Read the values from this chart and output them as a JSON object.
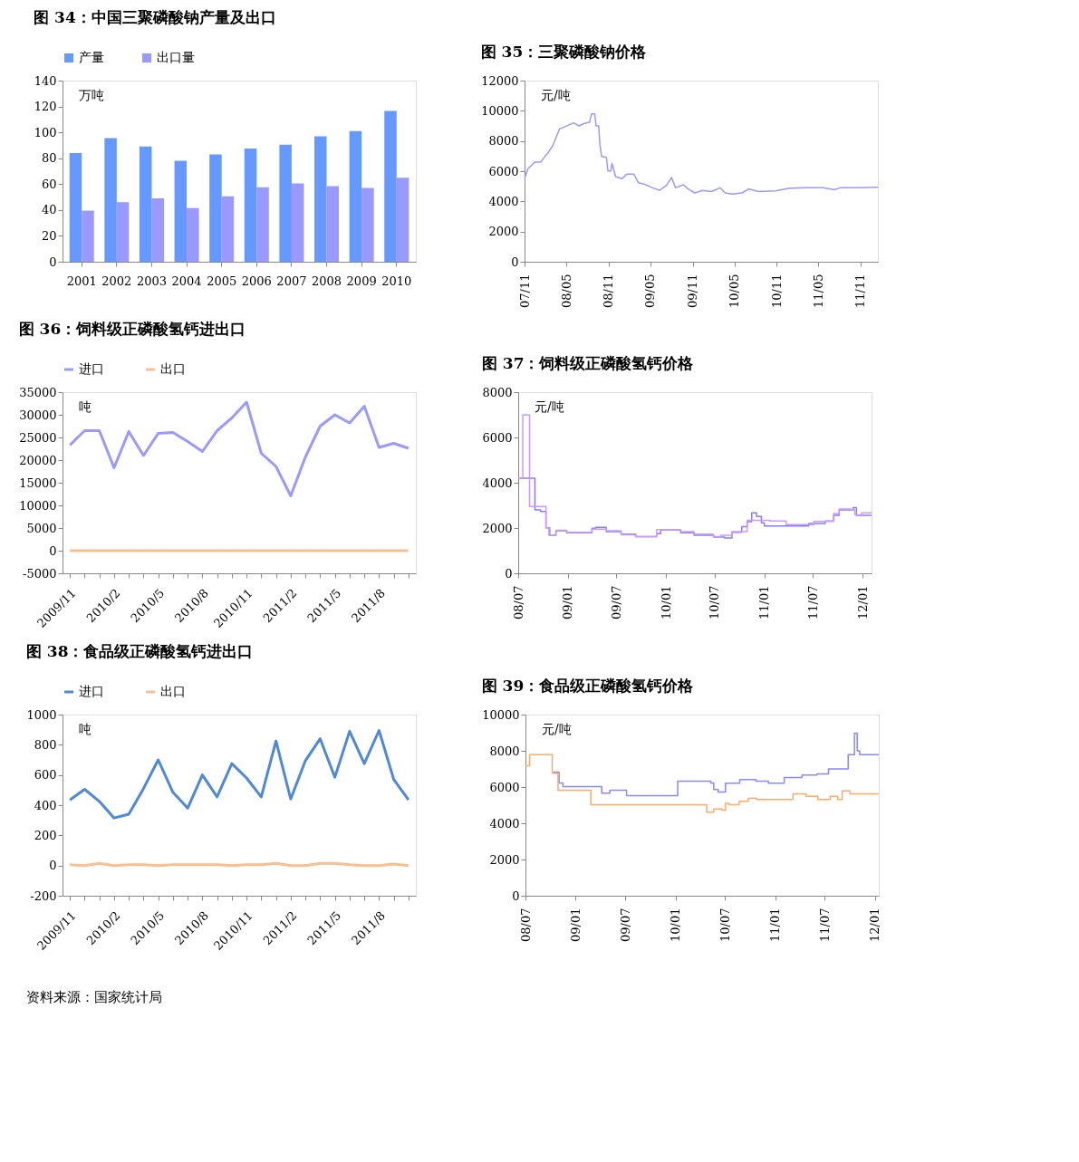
{
  "chart_data": [
    {
      "type": "bar",
      "title": "图 34：中国三聚磷酸钠产量及出口",
      "annotations": [
        "万吨"
      ],
      "categories": [
        "2001",
        "2002",
        "2003",
        "2004",
        "2005",
        "2006",
        "2007",
        "2008",
        "2009",
        "2010"
      ],
      "series": [
        {
          "name": "产量",
          "color": "#6699ff",
          "values": [
            84,
            95.5,
            89,
            78,
            83,
            87.5,
            90.5,
            97,
            101,
            116.5
          ]
        },
        {
          "name": "出口量",
          "color": "#9999ff",
          "values": [
            39.5,
            46,
            49,
            41.5,
            50.5,
            57.5,
            60.5,
            58.5,
            57,
            65
          ]
        }
      ],
      "ylim": [
        0,
        140
      ],
      "yticks": [
        0,
        20,
        40,
        60,
        80,
        100,
        120,
        140
      ],
      "legend": "top"
    },
    {
      "type": "line",
      "title": "图 35：三聚磷酸钠价格",
      "annotations": [
        "元/吨"
      ],
      "x": [
        "2007-11-01",
        "2007-11-15",
        "2007-12-15",
        "2008-01-10",
        "2008-01-28",
        "2008-02-10",
        "2008-03-03",
        "2008-04-01",
        "2008-04-25",
        "2008-06-01",
        "2008-06-25",
        "2008-07-15",
        "2008-08-10",
        "2008-08-18",
        "2008-09-01",
        "2008-09-07",
        "2008-09-18",
        "2008-09-24",
        "2008-10-01",
        "2008-10-22",
        "2008-10-28",
        "2008-11-10",
        "2008-11-15",
        "2008-12-01",
        "2008-12-28",
        "2009-01-18",
        "2009-02-18",
        "2009-03-10",
        "2009-04-03",
        "2009-05-10",
        "2009-06-10",
        "2009-07-10",
        "2009-08-01",
        "2009-08-18",
        "2009-09-22",
        "2009-10-12",
        "2009-11-10",
        "2009-12-15",
        "2010-01-22",
        "2010-02-28",
        "2010-03-22",
        "2010-04-22",
        "2010-06-03",
        "2010-07-03",
        "2010-08-15",
        "2010-10-28",
        "2010-12-22",
        "2011-02-28",
        "2011-05-22",
        "2011-07-10",
        "2011-08-03",
        "2011-10-28",
        "2012-01-15"
      ],
      "series": [
        {
          "color": "#9999ff",
          "values": [
            5500,
            6150,
            6600,
            6600,
            6970,
            7200,
            7700,
            8800,
            8950,
            9200,
            9000,
            9150,
            9250,
            9800,
            9800,
            9000,
            9000,
            7700,
            6970,
            6920,
            6020,
            6020,
            6520,
            5640,
            5500,
            5800,
            5800,
            5230,
            5150,
            4900,
            4730,
            5060,
            5590,
            4900,
            5100,
            4820,
            4560,
            4730,
            4650,
            4900,
            4560,
            4480,
            4560,
            4820,
            4650,
            4700,
            4860,
            4900,
            4900,
            4770,
            4900,
            4900,
            4930
          ]
        }
      ],
      "xlim": [
        "2007-11-01",
        "2012-01-15"
      ],
      "xticks": [
        {
          "value": "2007-11",
          "label": "07/11"
        },
        {
          "value": "2008-05",
          "label": "08/05"
        },
        {
          "value": "2008-11",
          "label": "08/11"
        },
        {
          "value": "2009-05",
          "label": "09/05"
        },
        {
          "value": "2009-11",
          "label": "09/11"
        },
        {
          "value": "2010-05",
          "label": "10/05"
        },
        {
          "value": "2010-11",
          "label": "10/11"
        },
        {
          "value": "2011-05",
          "label": "11/05"
        },
        {
          "value": "2011-11",
          "label": "11/11"
        }
      ],
      "ylim": [
        0,
        12000
      ],
      "yticks": [
        0,
        2000,
        4000,
        6000,
        8000,
        10000,
        12000
      ]
    },
    {
      "type": "line",
      "title": "图 36：饲料级正磷酸氢钙进出口",
      "annotations": [
        "吨"
      ],
      "categories": [
        "2009/11",
        null,
        null,
        "2010/2",
        null,
        null,
        "2010/5",
        null,
        null,
        "2010/8",
        null,
        null,
        "2010/11",
        null,
        null,
        "2011/2",
        null,
        null,
        "2011/5",
        null,
        null,
        "2011/8",
        null,
        null
      ],
      "series": [
        {
          "name": "进口",
          "color": "#9999ff",
          "values": [
            23300,
            26500,
            26500,
            18300,
            26300,
            21000,
            25900,
            26100,
            24100,
            21900,
            26500,
            29300,
            32800,
            21500,
            18600,
            12100,
            20700,
            27500,
            30000,
            28200,
            31900,
            22800,
            23700,
            22600
          ]
        },
        {
          "name": "出口",
          "color": "#f8bf90",
          "values": [
            0,
            0,
            0,
            0,
            0,
            0,
            0,
            0,
            0,
            0,
            0,
            0,
            0,
            0,
            0,
            0,
            0,
            0,
            0,
            0,
            0,
            0,
            0,
            0
          ]
        }
      ],
      "ylim": [
        -5000,
        35000
      ],
      "yticks": [
        -5000,
        0,
        5000,
        10000,
        15000,
        20000,
        25000,
        30000,
        35000
      ],
      "legend": "top"
    },
    {
      "type": "step",
      "title": "图 37：饲料级正磷酸氢钙价格",
      "annotations": [
        "元/吨"
      ],
      "series": [
        {
          "color": "#8080ff",
          "x": [
            "2008-07-01",
            "2008-09-01",
            "2008-09-22",
            "2008-10-12",
            "2008-10-24",
            "2008-11-18",
            "2008-12-28",
            "2009-04-01",
            "2009-04-15",
            "2009-05-24",
            "2009-07-18",
            "2009-09-10",
            "2009-11-27",
            "2009-12-12",
            "2010-02-24",
            "2010-04-15",
            "2010-06-27",
            "2010-08-06",
            "2010-09-03",
            "2010-10-09",
            "2010-10-29",
            "2010-11-15",
            "2010-12-03",
            "2010-12-21",
            "2011-01-01",
            "2011-06-04",
            "2011-06-15",
            "2011-08-15",
            "2011-09-15",
            "2011-10-06",
            "2011-11-27",
            "2011-12-09",
            "2012-02-03"
          ],
          "values": [
            4200,
            2800,
            2730,
            2010,
            1680,
            1880,
            1790,
            1990,
            2030,
            1840,
            1730,
            1620,
            1750,
            1920,
            1790,
            1680,
            1600,
            1560,
            1810,
            2060,
            2280,
            2670,
            2510,
            2230,
            2090,
            2090,
            2200,
            2310,
            2560,
            2800,
            2900,
            2560,
            2560
          ]
        },
        {
          "color": "#cc99ff",
          "x": [
            "2008-07-01",
            "2008-07-18",
            "2008-08-12",
            "2008-10-12",
            "2008-10-27",
            "2008-11-18",
            "2008-12-28",
            "2009-04-01",
            "2009-05-24",
            "2009-07-18",
            "2009-09-10",
            "2009-11-27",
            "2010-02-24",
            "2010-04-15",
            "2010-06-25",
            "2010-07-23",
            "2010-09-03",
            "2010-10-29",
            "2011-01-21",
            "2011-03-23",
            "2011-07-04",
            "2011-09-15",
            "2011-10-06",
            "2011-11-18",
            "2011-12-03",
            "2011-12-28",
            "2012-02-03"
          ],
          "values": [
            4200,
            7000,
            2950,
            2010,
            1680,
            1900,
            1810,
            1950,
            1880,
            1700,
            1620,
            1930,
            1840,
            1730,
            1620,
            1680,
            1840,
            2340,
            2310,
            2150,
            2290,
            2640,
            2840,
            2800,
            2580,
            2670,
            2670
          ]
        }
      ],
      "xlim": [
        "2008-07-01",
        "2012-02-03"
      ],
      "xticks": [
        {
          "value": "2008-07",
          "label": "08/07"
        },
        {
          "value": "2009-01",
          "label": "09/01"
        },
        {
          "value": "2009-07",
          "label": "09/07"
        },
        {
          "value": "2010-01",
          "label": "10/01"
        },
        {
          "value": "2010-07",
          "label": "10/07"
        },
        {
          "value": "2011-01",
          "label": "11/01"
        },
        {
          "value": "2011-07",
          "label": "11/07"
        },
        {
          "value": "2012-01",
          "label": "12/01"
        }
      ],
      "ylim": [
        0,
        8000
      ],
      "yticks": [
        0,
        2000,
        4000,
        6000,
        8000
      ]
    },
    {
      "type": "line",
      "title": "图 38：食品级正磷酸氢钙进出口",
      "annotations": [
        "吨",
        "资料来源：国家统计局"
      ],
      "categories": [
        "2009/11",
        null,
        null,
        "2010/2",
        null,
        null,
        "2010/5",
        null,
        null,
        "2010/8",
        null,
        null,
        "2010/11",
        null,
        null,
        "2011/2",
        null,
        null,
        "2011/5",
        null,
        null,
        "2011/8",
        null,
        null
      ],
      "series": [
        {
          "name": "进口",
          "color": "#5088d8",
          "values": [
            435,
            505,
            425,
            315,
            340,
            510,
            700,
            485,
            380,
            600,
            455,
            675,
            580,
            455,
            825,
            440,
            695,
            840,
            585,
            890,
            675,
            895,
            570,
            435
          ]
        },
        {
          "name": "出口",
          "color": "#f8c090",
          "values": [
            5,
            0,
            15,
            0,
            5,
            5,
            0,
            5,
            5,
            5,
            5,
            0,
            5,
            5,
            15,
            0,
            0,
            15,
            15,
            5,
            0,
            0,
            10,
            0
          ]
        }
      ],
      "ylim": [
        -200,
        1000
      ],
      "yticks": [
        -200,
        0,
        200,
        400,
        600,
        800,
        1000
      ],
      "legend": "top"
    },
    {
      "type": "step",
      "title": "图 39：食品级正磷酸氢钙价格",
      "annotations": [
        "元/吨"
      ],
      "series": [
        {
          "color": "#8888ff",
          "x": [
            "2008-10-10",
            "2008-11-01",
            "2008-11-15",
            "2009-04-06",
            "2009-05-06",
            "2009-07-06",
            "2010-01-09",
            "2010-05-10",
            "2010-05-21",
            "2010-06-06",
            "2010-07-03",
            "2010-08-24",
            "2010-10-22",
            "2010-12-07",
            "2011-02-03",
            "2011-04-09",
            "2011-06-03",
            "2011-07-15",
            "2011-09-25",
            "2011-10-18",
            "2011-10-28",
            "2011-11-06",
            "2012-01-15"
          ],
          "values": [
            6830,
            6230,
            6030,
            5660,
            5820,
            5520,
            6320,
            6230,
            5860,
            5720,
            6210,
            6410,
            6320,
            6210,
            6520,
            6660,
            6720,
            7000,
            7790,
            8970,
            8000,
            7790,
            7790
          ]
        },
        {
          "color": "#ffaa66",
          "x": [
            "2008-07-01",
            "2008-07-16",
            "2008-10-07",
            "2008-10-28",
            "2009-02-25",
            "2010-01-09",
            "2010-04-25",
            "2010-05-21",
            "2010-06-20",
            "2010-07-03",
            "2010-07-16",
            "2010-08-22",
            "2010-09-24",
            "2010-10-25",
            "2011-03-07",
            "2011-04-24",
            "2011-06-06",
            "2011-07-21",
            "2011-08-18",
            "2011-09-03",
            "2011-10-01",
            "2012-01-15"
          ],
          "values": [
            7170,
            7790,
            6760,
            5820,
            5030,
            5030,
            4610,
            4790,
            4720,
            5100,
            5030,
            5210,
            5380,
            5310,
            5630,
            5490,
            5310,
            5490,
            5310,
            5790,
            5630,
            5630
          ]
        }
      ],
      "xlim": [
        "2008-07-01",
        "2012-01-15"
      ],
      "xticks": [
        {
          "value": "2008-07",
          "label": "08/07"
        },
        {
          "value": "2009-01",
          "label": "09/01"
        },
        {
          "value": "2009-07",
          "label": "09/07"
        },
        {
          "value": "2010-01",
          "label": "10/01"
        },
        {
          "value": "2010-07",
          "label": "10/07"
        },
        {
          "value": "2011-01",
          "label": "11/01"
        },
        {
          "value": "2011-07",
          "label": "11/07"
        },
        {
          "value": "2012-01",
          "label": "12/01"
        }
      ],
      "ylim": [
        0,
        10000
      ],
      "yticks": [
        0,
        2000,
        4000,
        6000,
        8000,
        10000
      ]
    }
  ]
}
